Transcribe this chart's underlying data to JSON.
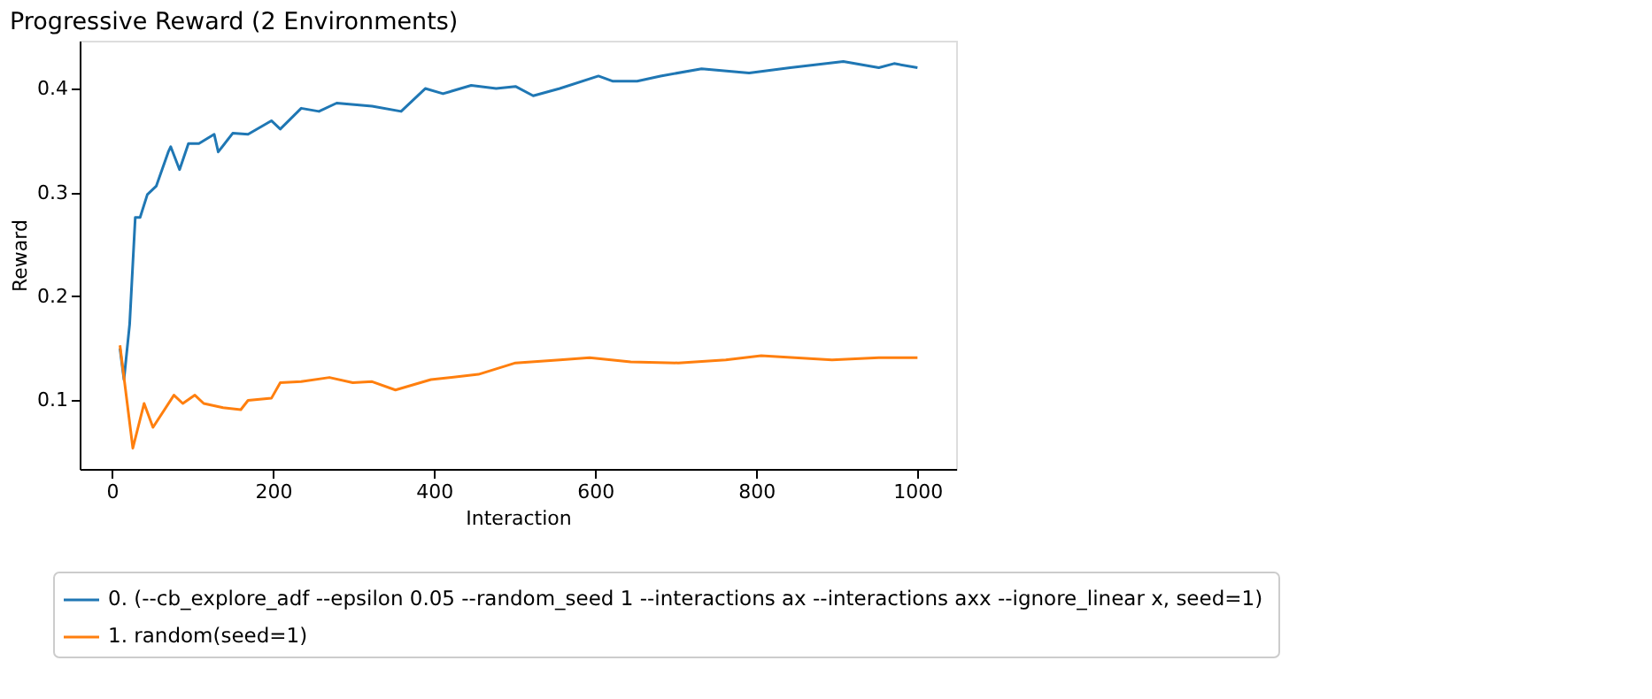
{
  "chart_data": {
    "type": "line",
    "title": "Progressive Reward (2 Environments)",
    "xlabel": "Interaction",
    "ylabel": "Reward",
    "xlim": [
      -40,
      1048
    ],
    "ylim": [
      0.034,
      0.446
    ],
    "xticks": [
      0,
      200,
      400,
      600,
      800,
      1000
    ],
    "yticks": [
      0.1,
      0.2,
      0.3,
      0.4
    ],
    "grid": false,
    "legend": "bottom",
    "marker": "none",
    "line_style": "solid",
    "series": [
      {
        "name": "0. (--cb_explore_adf --epsilon 0.05 --random_seed 1  --interactions ax --interactions axx --ignore_linear x, seed=1)",
        "color": "#1f77b4",
        "x": [
          10,
          15,
          22,
          29,
          35,
          44,
          55,
          70,
          73,
          84,
          95,
          108,
          127,
          132,
          150,
          169,
          198,
          209,
          235,
          257,
          279,
          323,
          359,
          389,
          411,
          446,
          477,
          501,
          523,
          556,
          604,
          622,
          652,
          681,
          732,
          791,
          842,
          908,
          952,
          971,
          1000
        ],
        "values": [
          0.15,
          0.12,
          0.173,
          0.276,
          0.276,
          0.298,
          0.306,
          0.339,
          0.344,
          0.322,
          0.347,
          0.347,
          0.356,
          0.339,
          0.357,
          0.356,
          0.369,
          0.361,
          0.381,
          0.378,
          0.386,
          0.383,
          0.378,
          0.4,
          0.395,
          0.403,
          0.4,
          0.402,
          0.393,
          0.4,
          0.412,
          0.407,
          0.407,
          0.412,
          0.419,
          0.415,
          0.42,
          0.426,
          0.42,
          0.424,
          0.42
        ]
      },
      {
        "name": "1. random(seed=1)",
        "color": "#ff7f0e",
        "x": [
          10,
          26,
          40,
          51,
          77,
          88,
          103,
          114,
          138,
          160,
          169,
          198,
          209,
          235,
          270,
          299,
          323,
          352,
          396,
          455,
          501,
          556,
          593,
          644,
          703,
          762,
          806,
          894,
          952,
          1000
        ],
        "values": [
          0.153,
          0.054,
          0.097,
          0.074,
          0.105,
          0.097,
          0.105,
          0.097,
          0.093,
          0.091,
          0.1,
          0.102,
          0.117,
          0.118,
          0.122,
          0.117,
          0.118,
          0.11,
          0.12,
          0.125,
          0.136,
          0.139,
          0.141,
          0.137,
          0.136,
          0.139,
          0.143,
          0.139,
          0.141,
          0.141
        ]
      }
    ]
  }
}
